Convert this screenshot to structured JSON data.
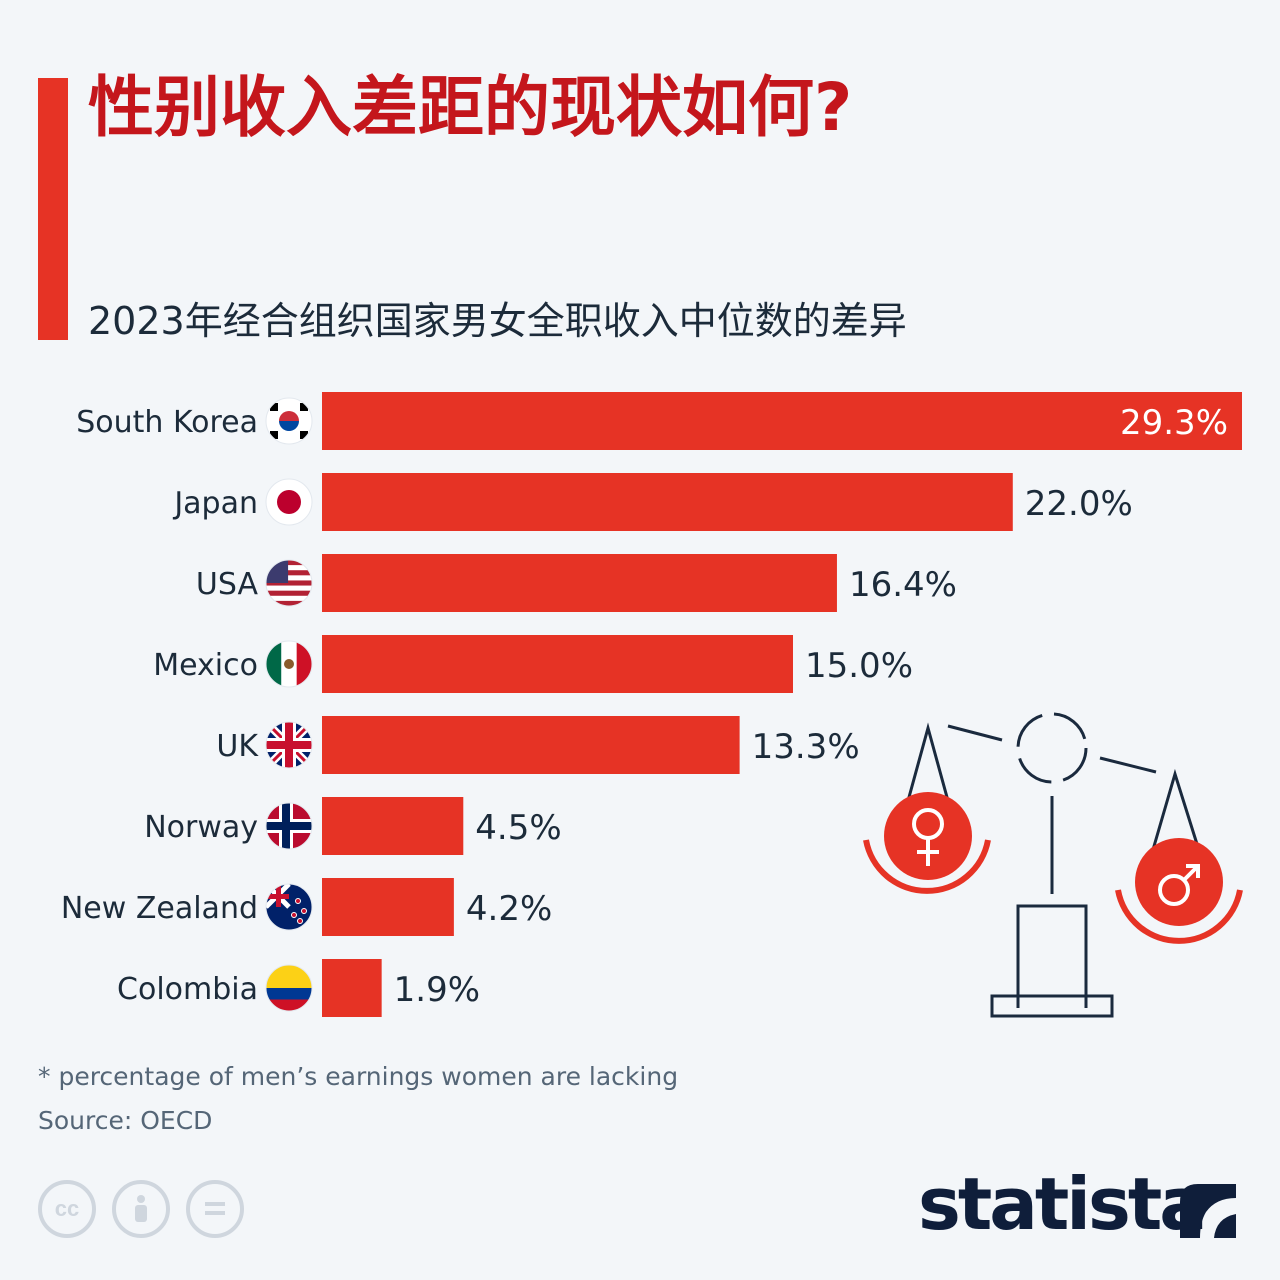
{
  "title": "性别收入差距的现状如何?",
  "subtitle": "2023年经合组织国家男女全职收入中位数的差异",
  "footer": {
    "note": "* percentage of men’s earnings women are lacking",
    "source": "Source: OECD",
    "brand": "statista"
  },
  "colors": {
    "bar": "#e63325",
    "title": "#c4161c",
    "text": "#1c2b3a"
  },
  "chart_data": {
    "type": "bar",
    "orientation": "horizontal",
    "categories": [
      "South Korea",
      "Japan",
      "USA",
      "Mexico",
      "UK",
      "Norway",
      "New Zealand",
      "Colombia"
    ],
    "values": [
      29.3,
      22.0,
      16.4,
      15.0,
      13.3,
      4.5,
      4.2,
      1.9
    ],
    "value_labels": [
      "29.3%",
      "22.0%",
      "16.4%",
      "15.0%",
      "13.3%",
      "4.5%",
      "4.2%",
      "1.9%"
    ],
    "flags": [
      "south-korea-flag-icon",
      "japan-flag-icon",
      "usa-flag-icon",
      "mexico-flag-icon",
      "uk-flag-icon",
      "norway-flag-icon",
      "new-zealand-flag-icon",
      "colombia-flag-icon"
    ],
    "xlim": [
      0,
      29.3
    ],
    "grid": false,
    "legend": "none"
  }
}
